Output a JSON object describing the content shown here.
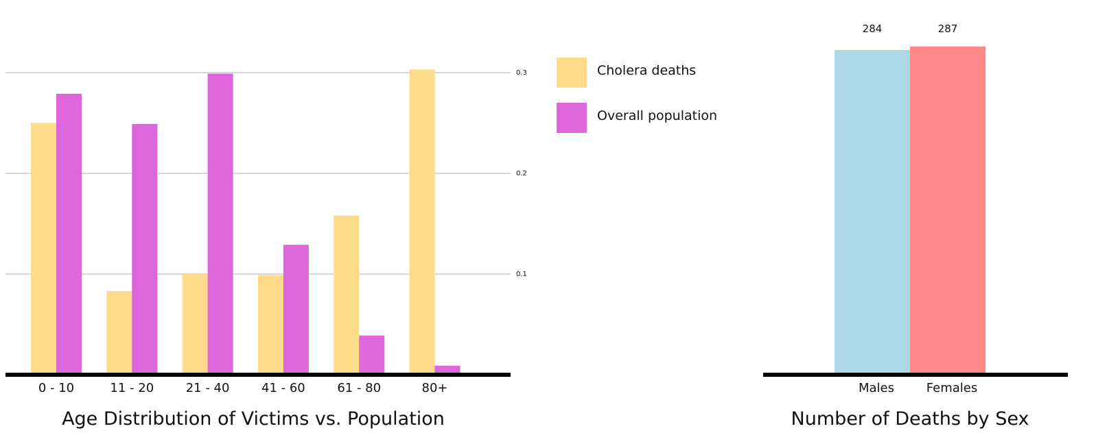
{
  "chart_data": [
    {
      "type": "bar",
      "title": "Age Distribution of Victims vs. Population",
      "categories": [
        "0 - 10",
        "11 - 20",
        "21 - 40",
        "41 - 60",
        "61 - 80",
        "80+"
      ],
      "series": [
        {
          "name": "Cholera deaths",
          "color": "#fedb8b",
          "values": [
            0.25,
            0.083,
            0.1,
            0.099,
            0.158,
            0.303
          ]
        },
        {
          "name": "Overall population",
          "color": "#dd66dd",
          "values": [
            0.279,
            0.249,
            0.299,
            0.129,
            0.039,
            0.009
          ]
        }
      ],
      "yticks": [
        "0.1",
        "0.2",
        "0.3"
      ],
      "ylim": [
        0,
        0.3
      ],
      "grid": true,
      "legend_position": "right"
    },
    {
      "type": "bar",
      "title": "Number of Deaths by Sex",
      "categories": [
        "Males",
        "Females"
      ],
      "values": [
        284,
        287
      ],
      "value_labels": [
        "284",
        "287"
      ],
      "colors": [
        "#add8e6",
        "#ff8888"
      ]
    }
  ]
}
